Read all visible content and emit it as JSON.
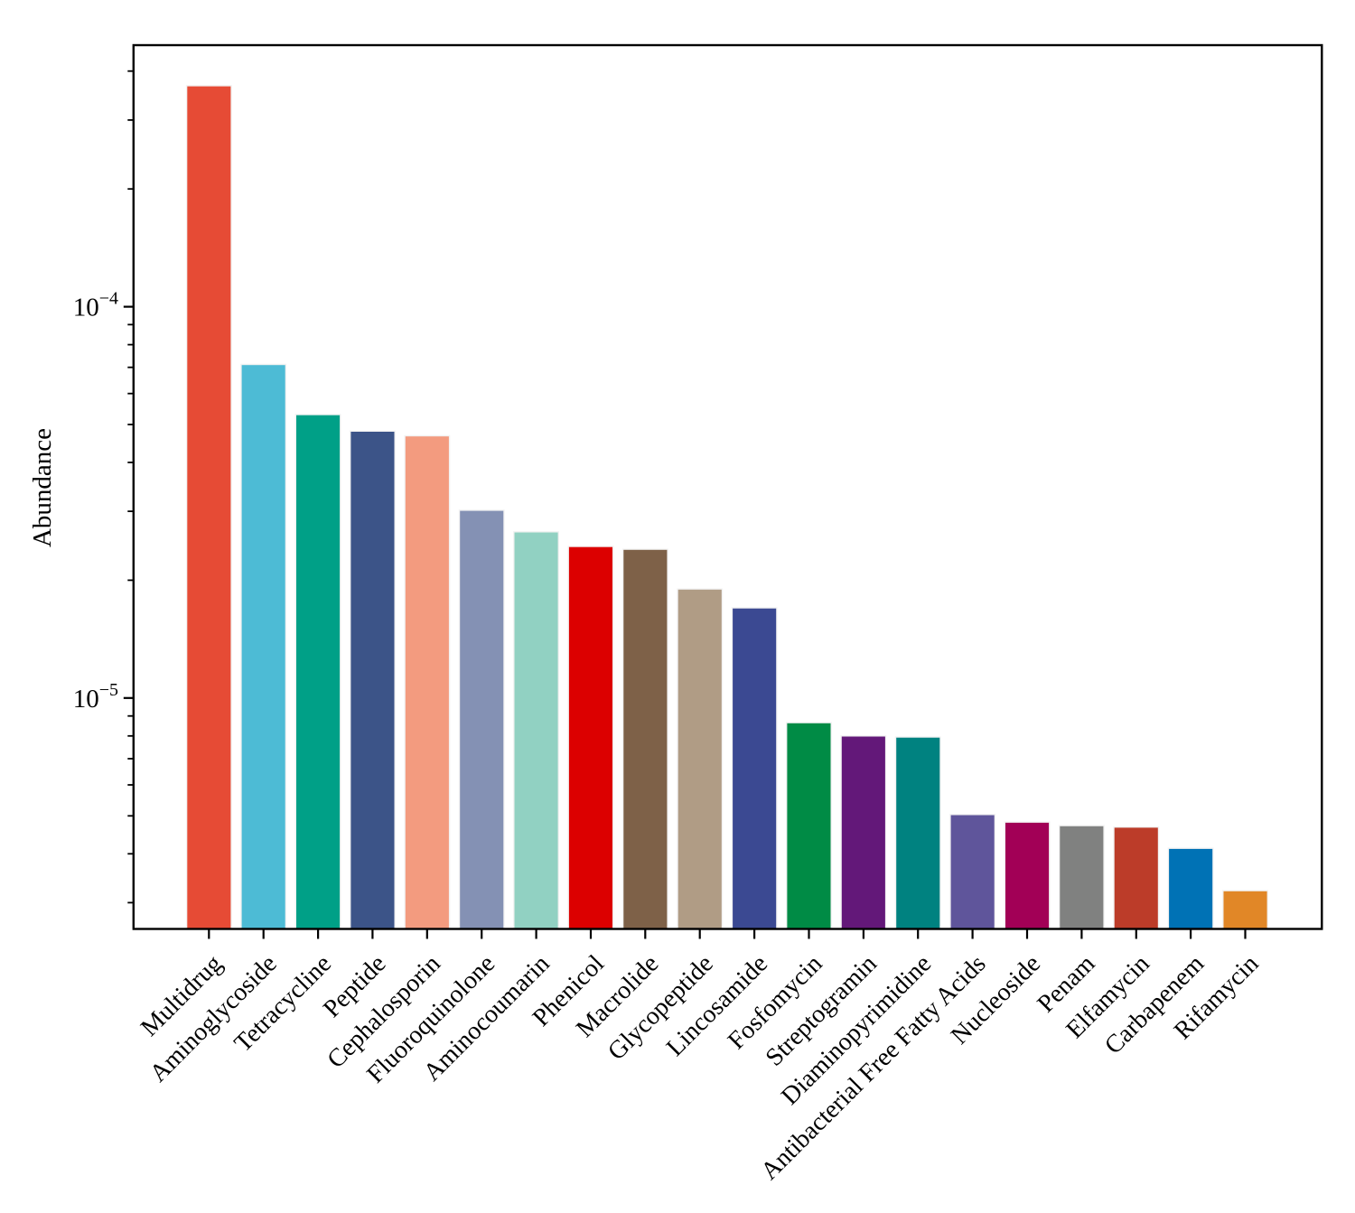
{
  "chart_data": {
    "type": "bar",
    "title": "",
    "xlabel": "",
    "ylabel": "Abundance",
    "y_scale": "log",
    "ylim": [
      2.57e-06,
      0.000466
    ],
    "grid": false,
    "legend": "none",
    "background_color": "#ffffff",
    "axis_color": "#000000",
    "bar_edge_color": "#f2f2f2",
    "yticks_major": [
      {
        "value": 0.0001,
        "base": "10",
        "exp": "−4"
      },
      {
        "value": 1e-05,
        "base": "10",
        "exp": "−5"
      }
    ],
    "categories": [
      "Multidrug",
      "Aminoglycoside",
      "Tetracycline",
      "Peptide",
      "Cephalosporin",
      "Fluoroquinolone",
      "Aminocoumarin",
      "Phenicol",
      "Macrolide",
      "Glycopeptide",
      "Lincosamide",
      "Fosfomycin",
      "Streptogramin",
      "Diaminopyrimidine",
      "Antibacterial Free Fatty Acids",
      "Nucleoside",
      "Penam",
      "Elfamycin",
      "Carbapenem",
      "Rifamycin"
    ],
    "values": [
      0.000367,
      7.12e-05,
      5.3e-05,
      4.81e-05,
      4.68e-05,
      3.02e-05,
      2.66e-05,
      2.44e-05,
      2.4e-05,
      1.9e-05,
      1.7e-05,
      8.65e-06,
      8e-06,
      7.95e-06,
      5.04e-06,
      4.82e-06,
      4.72e-06,
      4.68e-06,
      4.13e-06,
      3.22e-06
    ],
    "colors": [
      "#E64B35",
      "#4DBBD5",
      "#00A087",
      "#3C5488",
      "#F39B7F",
      "#8491B4",
      "#91D1C2",
      "#DC0000",
      "#7E6148",
      "#B09C85",
      "#3B4992",
      "#008B45",
      "#631879",
      "#008280",
      "#5F559B",
      "#A20056",
      "#808180",
      "#BC3C29",
      "#0072B5",
      "#E18727"
    ]
  }
}
